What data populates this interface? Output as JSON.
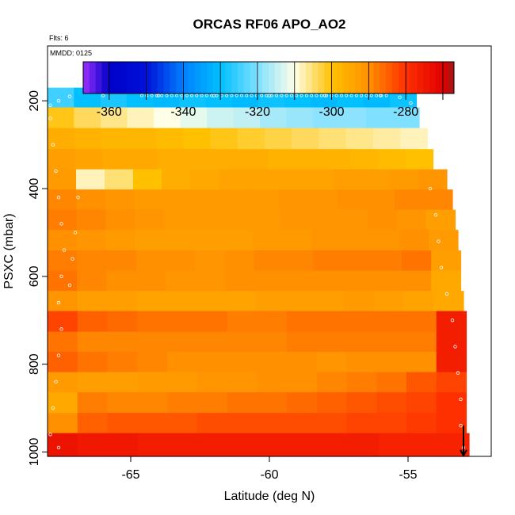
{
  "chart_data": {
    "type": "heatmap",
    "title": "ORCAS RF06 APO_AO2",
    "flights_note": "Flts: 6",
    "date_note": "MMDD: 0125",
    "xlabel": "Latitude (deg N)",
    "ylabel": "PSXC (mbar)",
    "xlim": [
      -68.0,
      -52.0
    ],
    "ylim": [
      1010,
      75
    ],
    "y_reversed": true,
    "x_ticks": [
      -65,
      -60,
      -55
    ],
    "x_tick_labels": [
      "-65",
      "-60",
      "-55"
    ],
    "y_ticks": [
      200,
      400,
      600,
      800,
      1000
    ],
    "y_tick_labels": [
      "200",
      "400",
      "600",
      "800",
      "1000"
    ],
    "colorbar": {
      "range": [
        -367,
        -267
      ],
      "ticks": [
        -360,
        -340,
        -320,
        -300,
        -280
      ],
      "tick_labels": [
        "-360",
        "-340",
        "-320",
        "-300",
        "-280"
      ],
      "stops": [
        {
          "v": -367,
          "color": "#9b30ff"
        },
        {
          "v": -360,
          "color": "#0000c8"
        },
        {
          "v": -350,
          "color": "#0010d8"
        },
        {
          "v": -340,
          "color": "#0080ff"
        },
        {
          "v": -330,
          "color": "#00c0ff"
        },
        {
          "v": -320,
          "color": "#80e0ff"
        },
        {
          "v": -310,
          "color": "#ffffe8"
        },
        {
          "v": -300,
          "color": "#ffc000"
        },
        {
          "v": -290,
          "color": "#ff9000"
        },
        {
          "v": -280,
          "color": "#ff3000"
        },
        {
          "v": -270,
          "color": "#e00000"
        },
        {
          "v": -267,
          "color": "#a01818"
        }
      ]
    },
    "rows": [
      {
        "p_top": 170,
        "p_bot": 215,
        "lat_start": -68.0,
        "lat_end": -54.7,
        "values": [
          -325,
          -330,
          -328,
          -330,
          -331,
          -329,
          -330,
          -331,
          -329,
          -330,
          -331,
          -330,
          -331,
          -329
        ]
      },
      {
        "p_top": 215,
        "p_bot": 262,
        "lat_start": -68.0,
        "lat_end": -54.6,
        "values": [
          -301,
          -304,
          -306,
          -308,
          -310,
          -312,
          -314,
          -315,
          -317,
          -318,
          -319,
          -319,
          -320,
          -320
        ]
      },
      {
        "p_top": 262,
        "p_bot": 310,
        "lat_start": -68.0,
        "lat_end": -54.3,
        "values": [
          -296,
          -297,
          -298,
          -298,
          -299,
          -300,
          -301,
          -302,
          -303,
          -304,
          -305,
          -306,
          -307,
          -308
        ]
      },
      {
        "p_top": 310,
        "p_bot": 356,
        "lat_start": -68.0,
        "lat_end": -54.1,
        "values": [
          -293,
          -294,
          -295,
          -295,
          -296,
          -296,
          -296,
          -296,
          -297,
          -297,
          -297,
          -298,
          -299,
          -300
        ]
      },
      {
        "p_top": 356,
        "p_bot": 402,
        "lat_start": -68.0,
        "lat_end": -53.6,
        "values": [
          -292,
          -308,
          -305,
          -300,
          -296,
          -295,
          -294,
          -294,
          -294,
          -294,
          -293,
          -293,
          -292,
          -291
        ]
      },
      {
        "p_top": 402,
        "p_bot": 448,
        "lat_start": -68.0,
        "lat_end": -53.4,
        "values": [
          -289,
          -290,
          -291,
          -292,
          -292,
          -292,
          -292,
          -292,
          -291,
          -291,
          -290,
          -290,
          -289,
          -289
        ]
      },
      {
        "p_top": 448,
        "p_bot": 494,
        "lat_start": -68.0,
        "lat_end": -53.3,
        "values": [
          -288,
          -289,
          -290,
          -291,
          -292,
          -292,
          -292,
          -292,
          -291,
          -291,
          -291,
          -290,
          -291,
          -293
        ]
      },
      {
        "p_top": 494,
        "p_bot": 541,
        "lat_start": -68.0,
        "lat_end": -53.2,
        "values": [
          -290,
          -291,
          -292,
          -293,
          -293,
          -293,
          -293,
          -292,
          -292,
          -291,
          -291,
          -291,
          -290,
          -292
        ]
      },
      {
        "p_top": 541,
        "p_bot": 587,
        "lat_start": -68.0,
        "lat_end": -53.1,
        "values": [
          -288,
          -289,
          -289,
          -290,
          -290,
          -291,
          -290,
          -289,
          -289,
          -288,
          -288,
          -288,
          -287,
          -293
        ]
      },
      {
        "p_top": 587,
        "p_bot": 633,
        "lat_start": -68.0,
        "lat_end": -53.1,
        "values": [
          -287,
          -289,
          -290,
          -290,
          -291,
          -291,
          -290,
          -290,
          -290,
          -290,
          -290,
          -290,
          -290,
          -295
        ]
      },
      {
        "p_top": 633,
        "p_bot": 679,
        "lat_start": -68.0,
        "lat_end": -53.0,
        "values": [
          -291,
          -293,
          -293,
          -294,
          -294,
          -294,
          -294,
          -293,
          -293,
          -293,
          -292,
          -293,
          -294,
          -295
        ]
      },
      {
        "p_top": 679,
        "p_bot": 726,
        "lat_start": -68.0,
        "lat_end": -52.9,
        "values": [
          -282,
          -285,
          -286,
          -287,
          -287,
          -287,
          -288,
          -288,
          -287,
          -287,
          -287,
          -287,
          -287,
          -276
        ]
      },
      {
        "p_top": 726,
        "p_bot": 772,
        "lat_start": -68.0,
        "lat_end": -52.9,
        "values": [
          -287,
          -289,
          -289,
          -289,
          -289,
          -289,
          -289,
          -289,
          -288,
          -288,
          -288,
          -288,
          -288,
          -276
        ]
      },
      {
        "p_top": 772,
        "p_bot": 818,
        "lat_start": -68.0,
        "lat_end": -52.9,
        "values": [
          -285,
          -287,
          -288,
          -289,
          -290,
          -290,
          -290,
          -290,
          -290,
          -291,
          -290,
          -290,
          -290,
          -276
        ]
      },
      {
        "p_top": 818,
        "p_bot": 864,
        "lat_start": -68.0,
        "lat_end": -52.9,
        "values": [
          -292,
          -293,
          -293,
          -292,
          -292,
          -291,
          -291,
          -290,
          -290,
          -289,
          -288,
          -287,
          -284,
          -282
        ]
      },
      {
        "p_top": 864,
        "p_bot": 911,
        "lat_start": -68.0,
        "lat_end": -52.9,
        "values": [
          -295,
          -288,
          -289,
          -289,
          -288,
          -288,
          -287,
          -287,
          -286,
          -285,
          -284,
          -283,
          -282,
          -280
        ]
      },
      {
        "p_top": 911,
        "p_bot": 957,
        "lat_start": -68.0,
        "lat_end": -52.9,
        "values": [
          -290,
          -285,
          -284,
          -284,
          -284,
          -283,
          -283,
          -283,
          -283,
          -283,
          -282,
          -282,
          -281,
          -280
        ]
      },
      {
        "p_top": 957,
        "p_bot": 1010,
        "lat_start": -68.0,
        "lat_end": -52.8,
        "values": [
          -274,
          -275,
          -275,
          -276,
          -276,
          -276,
          -276,
          -276,
          -276,
          -276,
          -276,
          -277,
          -277,
          -277
        ]
      }
    ],
    "track": [
      {
        "lat": -67.9,
        "p": 210
      },
      {
        "lat": -67.6,
        "p": 200
      },
      {
        "lat": -67.2,
        "p": 190
      },
      {
        "lat": -66.0,
        "p": 188
      },
      {
        "lat": -64.0,
        "p": 188
      },
      {
        "lat": -62.0,
        "p": 188
      },
      {
        "lat": -60.0,
        "p": 188
      },
      {
        "lat": -58.0,
        "p": 188
      },
      {
        "lat": -56.0,
        "p": 188
      },
      {
        "lat": -55.3,
        "p": 192
      },
      {
        "lat": -54.9,
        "p": 205
      },
      {
        "lat": -67.9,
        "p": 240
      },
      {
        "lat": -67.8,
        "p": 300
      },
      {
        "lat": -67.7,
        "p": 360
      },
      {
        "lat": -67.6,
        "p": 420
      },
      {
        "lat": -67.5,
        "p": 480
      },
      {
        "lat": -67.4,
        "p": 540
      },
      {
        "lat": -67.5,
        "p": 600
      },
      {
        "lat": -67.6,
        "p": 660
      },
      {
        "lat": -67.5,
        "p": 720
      },
      {
        "lat": -67.6,
        "p": 780
      },
      {
        "lat": -67.7,
        "p": 840
      },
      {
        "lat": -67.8,
        "p": 900
      },
      {
        "lat": -67.9,
        "p": 960
      },
      {
        "lat": -67.6,
        "p": 990
      },
      {
        "lat": -66.9,
        "p": 420
      },
      {
        "lat": -67.0,
        "p": 500
      },
      {
        "lat": -67.1,
        "p": 560
      },
      {
        "lat": -67.2,
        "p": 620
      },
      {
        "lat": -54.2,
        "p": 400
      },
      {
        "lat": -54.0,
        "p": 460
      },
      {
        "lat": -53.9,
        "p": 520
      },
      {
        "lat": -53.8,
        "p": 580
      },
      {
        "lat": -53.6,
        "p": 640
      },
      {
        "lat": -53.4,
        "p": 700
      },
      {
        "lat": -53.3,
        "p": 760
      },
      {
        "lat": -53.2,
        "p": 820
      },
      {
        "lat": -53.1,
        "p": 880
      },
      {
        "lat": -53.1,
        "p": 940
      },
      {
        "lat": -53.0,
        "p": 990
      }
    ],
    "marker": {
      "lat": -53.0,
      "p_from": 940,
      "p_to": 1008
    }
  }
}
